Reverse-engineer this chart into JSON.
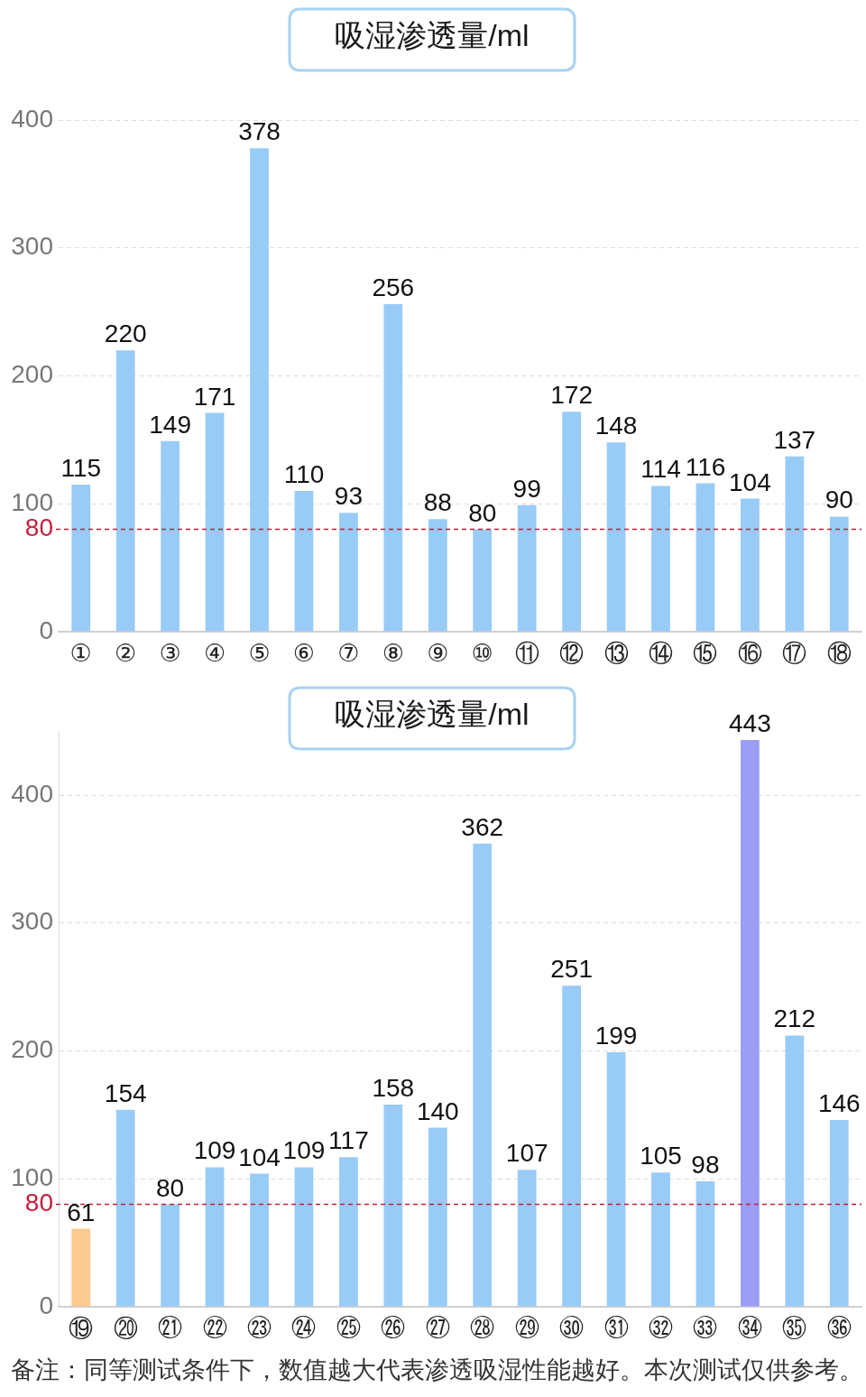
{
  "chart_data": [
    {
      "type": "bar",
      "title": "吸湿渗透量/ml",
      "categories": [
        "①",
        "②",
        "③",
        "④",
        "⑤",
        "⑥",
        "⑦",
        "⑧",
        "⑨",
        "⑩",
        "⑪",
        "⑫",
        "⑬",
        "⑭",
        "⑮",
        "⑯",
        "⑰",
        "⑱"
      ],
      "values": [
        115,
        220,
        149,
        171,
        378,
        110,
        93,
        256,
        88,
        80,
        99,
        172,
        148,
        114,
        116,
        104,
        137,
        90
      ],
      "color": "#99cbf7",
      "ylim": [
        0,
        400
      ],
      "yticks": [
        0,
        100,
        200,
        300,
        400
      ],
      "grid": "y",
      "data_labels": true,
      "ref_lines": [
        {
          "axis": "y",
          "value": 80,
          "label": "80",
          "color": "#c41e3a",
          "line_style": "dashed"
        }
      ]
    },
    {
      "type": "bar",
      "title": "吸湿渗透量/ml",
      "categories": [
        "⑲",
        "⑳",
        "㉑",
        "㉒",
        "㉓",
        "㉔",
        "㉕",
        "㉖",
        "㉗",
        "㉘",
        "㉙",
        "㉚",
        "㉛",
        "㉜",
        "㉝",
        "㉞",
        "㉟",
        "㊱"
      ],
      "values": [
        61,
        154,
        80,
        109,
        104,
        109,
        117,
        158,
        140,
        362,
        107,
        251,
        199,
        105,
        98,
        443,
        212,
        146
      ],
      "colors": [
        "#fcc990",
        "#99cbf7",
        "#99cbf7",
        "#99cbf7",
        "#99cbf7",
        "#99cbf7",
        "#99cbf7",
        "#99cbf7",
        "#99cbf7",
        "#99cbf7",
        "#99cbf7",
        "#99cbf7",
        "#99cbf7",
        "#99cbf7",
        "#99cbf7",
        "#9c9df5",
        "#99cbf7",
        "#99cbf7"
      ],
      "ylim": [
        0,
        450
      ],
      "yticks": [
        0,
        100,
        200,
        300,
        400
      ],
      "grid": "y",
      "data_labels": true,
      "ref_lines": [
        {
          "axis": "y",
          "value": 80,
          "label": "80",
          "color": "#c41e3a",
          "line_style": "dashed"
        }
      ],
      "annotations": [
        "备注：同等测试条件下，数值越大代表渗透吸湿性能越好。本次测试仅供参考。"
      ]
    }
  ]
}
